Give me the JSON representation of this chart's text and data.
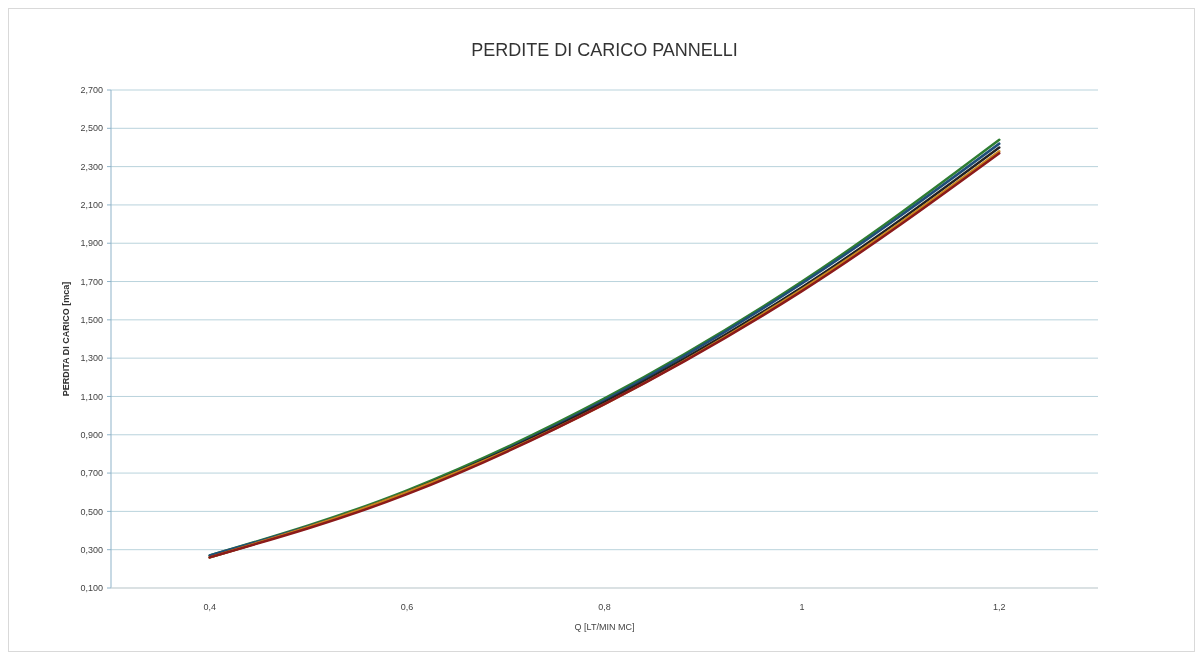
{
  "chart_data": {
    "type": "line",
    "title": "PERDITE DI CARICO PANNELLI",
    "xlabel": "Q [LT/MIN MC]",
    "ylabel": "PERDITA DI CARICO [mca]",
    "x": [
      0.4,
      0.6,
      0.8,
      1,
      1.2
    ],
    "series": [
      {
        "color": "#2e7d32",
        "values": [
          0.27,
          0.61,
          1.09,
          1.7,
          2.44
        ]
      },
      {
        "color": "#1f4e79",
        "values": [
          0.27,
          0.6,
          1.08,
          1.69,
          2.42
        ]
      },
      {
        "color": "#222222",
        "values": [
          0.26,
          0.6,
          1.07,
          1.67,
          2.4
        ]
      },
      {
        "color": "#c8861e",
        "values": [
          0.26,
          0.6,
          1.06,
          1.66,
          2.38
        ]
      },
      {
        "color": "#8b1a1a",
        "values": [
          0.26,
          0.59,
          1.06,
          1.65,
          2.37
        ]
      }
    ],
    "xlim": [
      0.3,
      1.3
    ],
    "xticks": [
      {
        "value": 0.4,
        "label": "0,4"
      },
      {
        "value": 0.6,
        "label": "0,6"
      },
      {
        "value": 0.8,
        "label": "0,8"
      },
      1,
      {
        "value": 1.2,
        "label": "1,2"
      }
    ],
    "ylim": [
      0.1,
      2.7
    ],
    "yticks": [
      {
        "value": 0.1,
        "label": "0,100"
      },
      {
        "value": 0.3,
        "label": "0,300"
      },
      {
        "value": 0.5,
        "label": "0,500"
      },
      {
        "value": 0.7,
        "label": "0,700"
      },
      {
        "value": 0.9,
        "label": "0,900"
      },
      {
        "value": 1.1,
        "label": "1,100"
      },
      {
        "value": 1.3,
        "label": "1,300"
      },
      {
        "value": 1.5,
        "label": "1,500"
      },
      {
        "value": 1.7,
        "label": "1,700"
      },
      {
        "value": 1.9,
        "label": "1,900"
      },
      {
        "value": 2.1,
        "label": "2,100"
      },
      {
        "value": 2.3,
        "label": "2,300"
      },
      {
        "value": 2.5,
        "label": "2,500"
      },
      {
        "value": 2.7,
        "label": "2,700"
      }
    ],
    "grid": "y",
    "marker": "none",
    "line_style": "solid"
  }
}
